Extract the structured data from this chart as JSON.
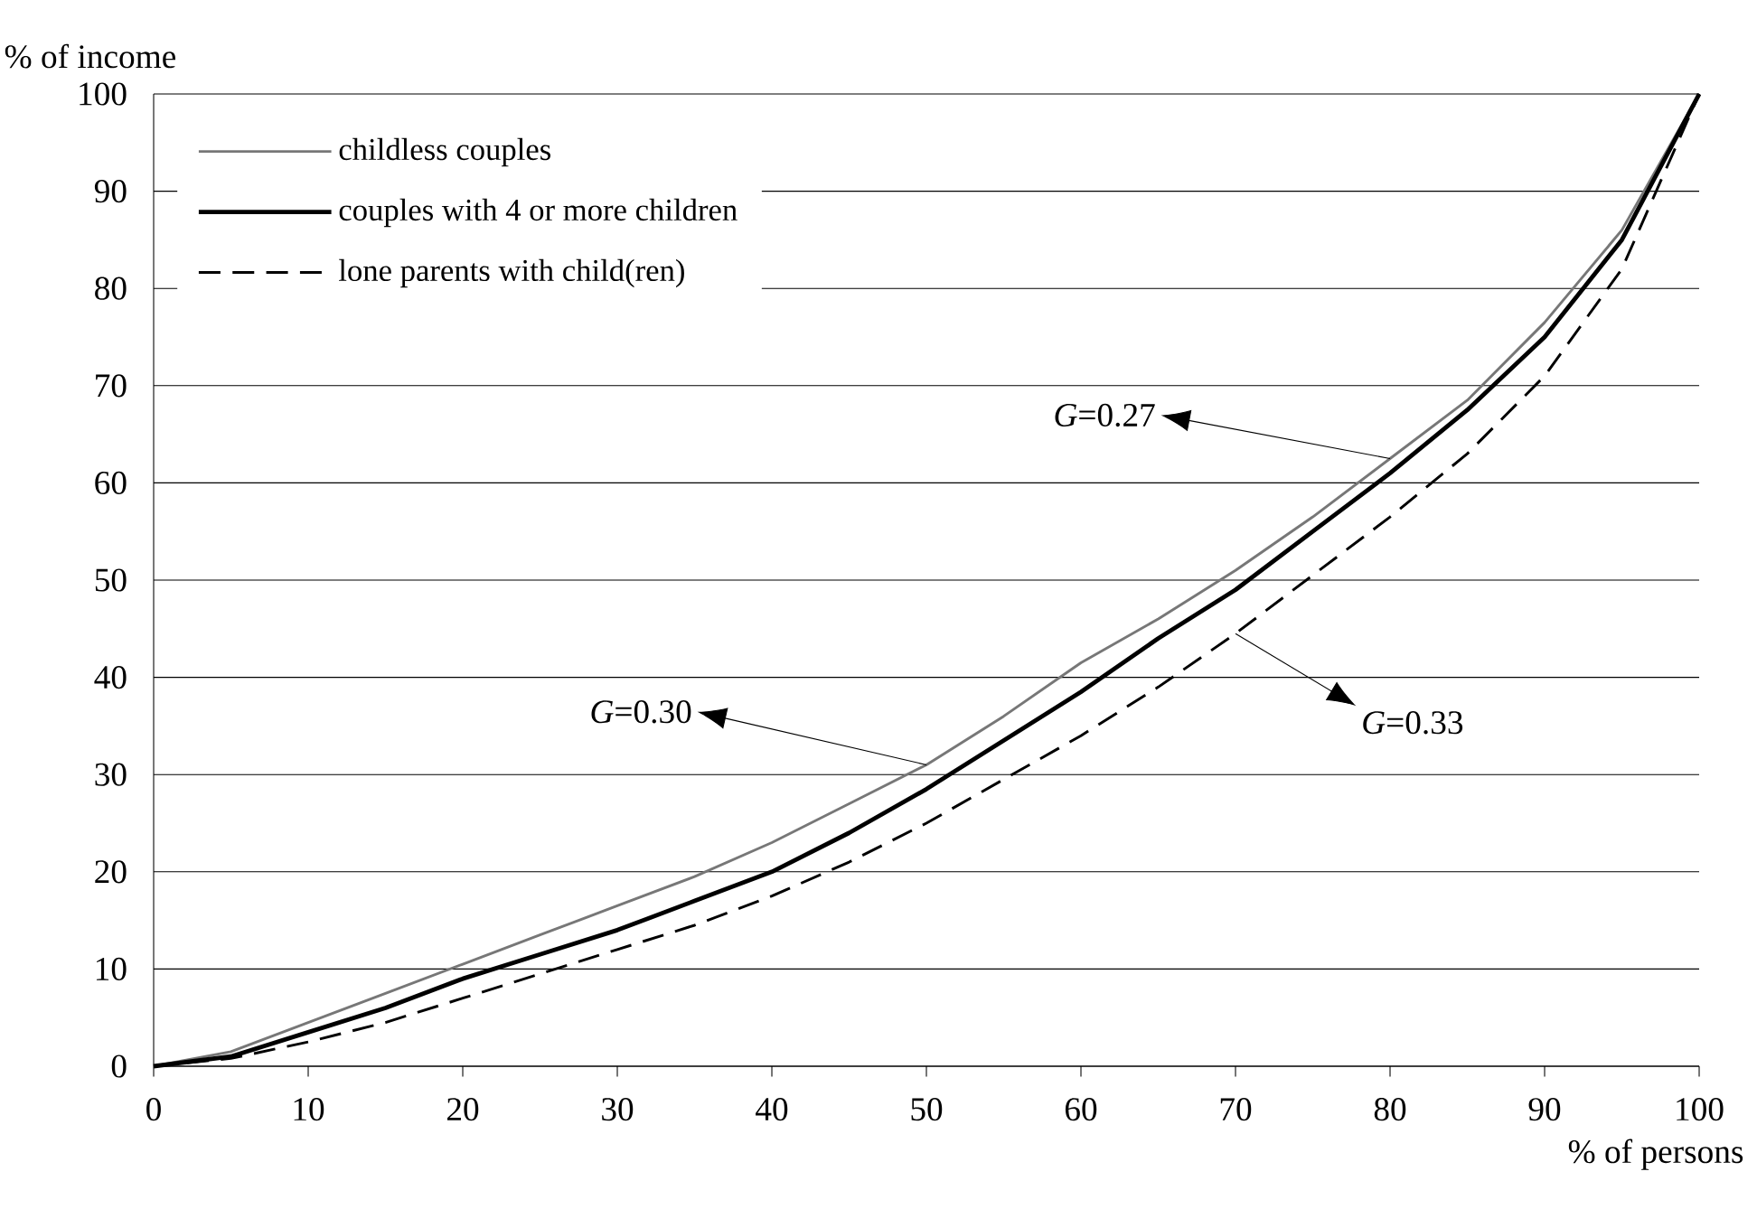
{
  "chart_data": {
    "type": "line",
    "xlabel": "% of persons",
    "ylabel": "% of income",
    "x": [
      0,
      5,
      10,
      15,
      20,
      25,
      30,
      35,
      40,
      45,
      50,
      55,
      60,
      65,
      70,
      75,
      80,
      85,
      90,
      95,
      100
    ],
    "series": [
      {
        "name": "childless couples",
        "color": "#777777",
        "line_style": "solid",
        "values": [
          0,
          1.5,
          4.5,
          7.5,
          10.5,
          13.5,
          16.5,
          19.5,
          23,
          27,
          31,
          36,
          41.5,
          46,
          51,
          56.5,
          62.5,
          68.5,
          76.5,
          86,
          100
        ]
      },
      {
        "name": "couples with 4 or more children",
        "color": "#000000",
        "line_style": "solid",
        "values": [
          0,
          1,
          3.5,
          6,
          9,
          11.5,
          14,
          17,
          20,
          24,
          28.5,
          33.5,
          38.5,
          44,
          49,
          55,
          61,
          67.5,
          75,
          85,
          100
        ]
      },
      {
        "name": "lone parents with child(ren)",
        "color": "#000000",
        "line_style": "dashed",
        "values": [
          0,
          0.8,
          2.5,
          4.5,
          7,
          9.5,
          12,
          14.5,
          17.5,
          21,
          25,
          29.5,
          34,
          39,
          44.5,
          50.5,
          56.5,
          63,
          71,
          82,
          100
        ]
      }
    ],
    "xlim": [
      0,
      100
    ],
    "ylim": [
      0,
      100
    ],
    "xticks": [
      0,
      10,
      20,
      30,
      40,
      50,
      60,
      70,
      80,
      90,
      100
    ],
    "yticks": [
      0,
      10,
      20,
      30,
      40,
      50,
      60,
      70,
      80,
      90,
      100
    ],
    "grid": "y",
    "legend": "top left",
    "marker": "none",
    "annotations": [
      {
        "text": "*G*=0.27",
        "x": 80,
        "y": 62.5
      },
      {
        "text": "*G*=0.30",
        "x": 50,
        "y": 31
      },
      {
        "text": "*G*=0.33",
        "x": 70,
        "y": 44.5
      }
    ]
  }
}
